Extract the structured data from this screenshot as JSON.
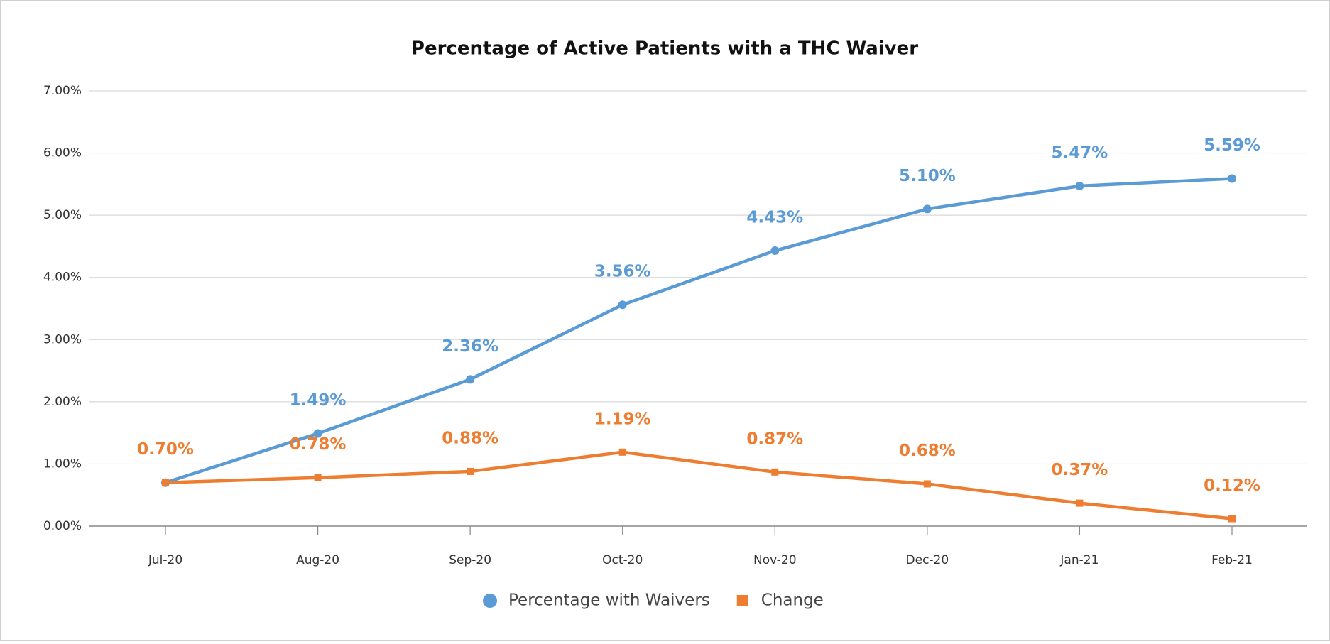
{
  "chart_data": {
    "type": "line",
    "title": "Percentage of Active Patients with a THC Waiver",
    "categories": [
      "Jul-20",
      "Aug-20",
      "Sep-20",
      "Oct-20",
      "Nov-20",
      "Dec-20",
      "Jan-21",
      "Feb-21"
    ],
    "series": [
      {
        "name": "Percentage with Waivers",
        "color": "#5b9bd5",
        "marker": "circle",
        "values": [
          0.7,
          1.49,
          2.36,
          3.56,
          4.43,
          5.1,
          5.47,
          5.59
        ],
        "value_labels": [
          null,
          "1.49%",
          "2.36%",
          "3.56%",
          "4.43%",
          "5.10%",
          "5.47%",
          "5.59%"
        ]
      },
      {
        "name": "Change",
        "color": "#ed7d31",
        "marker": "square",
        "values": [
          0.7,
          0.78,
          0.88,
          1.19,
          0.87,
          0.68,
          0.37,
          0.12
        ],
        "value_labels": [
          "0.70%",
          "0.78%",
          "0.88%",
          "1.19%",
          "0.87%",
          "0.68%",
          "0.37%",
          "0.12%"
        ]
      }
    ],
    "ylim": [
      0,
      7
    ],
    "yticks": [
      {
        "value": 0,
        "label": "0.00%"
      },
      {
        "value": 1,
        "label": "1.00%"
      },
      {
        "value": 2,
        "label": "2.00%"
      },
      {
        "value": 3,
        "label": "3.00%"
      },
      {
        "value": 4,
        "label": "4.00%"
      },
      {
        "value": 5,
        "label": "5.00%"
      },
      {
        "value": 6,
        "label": "6.00%"
      },
      {
        "value": 7,
        "label": "7.00%"
      }
    ],
    "grid": true,
    "legend": "bottom"
  }
}
